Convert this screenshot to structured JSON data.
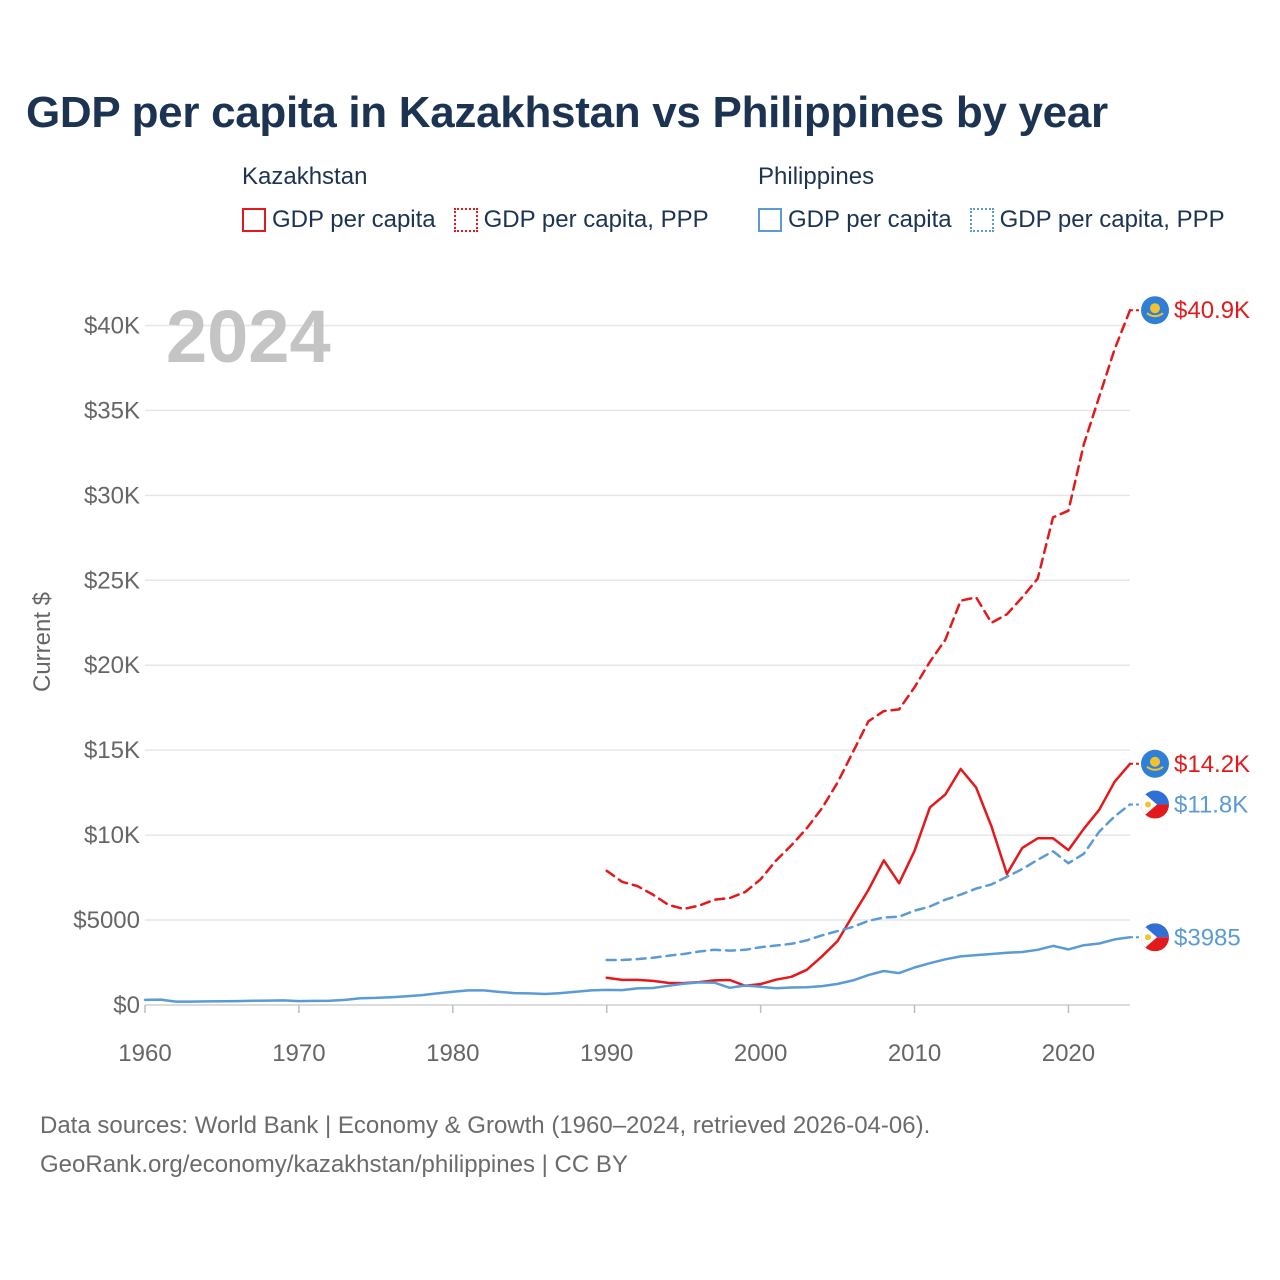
{
  "title": "GDP per capita in Kazakhstan vs Philippines by year",
  "legend": {
    "groups": [
      {
        "country": "Kazakhstan",
        "items": [
          {
            "label": "GDP per capita",
            "style": "solid",
            "color": "#e31a1c"
          },
          {
            "label": "GDP per capita, PPP",
            "style": "dotted",
            "color": "#e31a1c"
          }
        ]
      },
      {
        "country": "Philippines",
        "items": [
          {
            "label": "GDP per capita",
            "style": "solid",
            "color": "#5b9bd5"
          },
          {
            "label": "GDP per capita, PPP",
            "style": "dotted",
            "color": "#5b9bd5"
          }
        ]
      }
    ]
  },
  "footer": {
    "line1": "Data sources: World Bank | Economy & Growth (1960–2024, retrieved 2026-04-06).",
    "line2": "GeoRank.org/economy/kazakhstan/philippines | CC BY"
  },
  "chart_data": {
    "type": "line",
    "title": "GDP per capita in Kazakhstan vs Philippines by year",
    "year_label": "2024",
    "ylabel": "Current $",
    "xlabel": "",
    "xlim": [
      1960,
      2024
    ],
    "ylim": [
      0,
      41500
    ],
    "x_ticks": [
      1960,
      1970,
      1980,
      1990,
      2000,
      2010,
      2020
    ],
    "y_ticks": [
      0,
      5000,
      10000,
      15000,
      20000,
      25000,
      30000,
      35000,
      40000
    ],
    "y_tick_labels": [
      "$0",
      "$5000",
      "$10K",
      "$15K",
      "$20K",
      "$25K",
      "$30K",
      "$35K",
      "$40K"
    ],
    "grid": true,
    "series": [
      {
        "name": "Kazakhstan GDP per capita, PPP",
        "color": "#e31a1c",
        "dash": "dashed",
        "end_label": "$40.9K",
        "points": [
          [
            1990,
            7900
          ],
          [
            1991,
            7250
          ],
          [
            1992,
            7000
          ],
          [
            1993,
            6500
          ],
          [
            1994,
            5900
          ],
          [
            1995,
            5650
          ],
          [
            1996,
            5850
          ],
          [
            1997,
            6200
          ],
          [
            1998,
            6300
          ],
          [
            1999,
            6650
          ],
          [
            2000,
            7400
          ],
          [
            2001,
            8500
          ],
          [
            2002,
            9400
          ],
          [
            2003,
            10400
          ],
          [
            2004,
            11600
          ],
          [
            2005,
            13100
          ],
          [
            2006,
            14900
          ],
          [
            2007,
            16700
          ],
          [
            2008,
            17300
          ],
          [
            2009,
            17400
          ],
          [
            2010,
            18700
          ],
          [
            2011,
            20200
          ],
          [
            2012,
            21500
          ],
          [
            2013,
            23800
          ],
          [
            2014,
            24000
          ],
          [
            2015,
            22500
          ],
          [
            2016,
            23000
          ],
          [
            2017,
            24000
          ],
          [
            2018,
            25100
          ],
          [
            2019,
            28700
          ],
          [
            2020,
            29100
          ],
          [
            2021,
            33000
          ],
          [
            2022,
            35800
          ],
          [
            2023,
            38600
          ],
          [
            2024,
            40900
          ]
        ]
      },
      {
        "name": "Kazakhstan GDP per capita",
        "color": "#e31a1c",
        "dash": "solid",
        "end_label": "$14.2K",
        "points": [
          [
            1990,
            1600
          ],
          [
            1991,
            1480
          ],
          [
            1992,
            1480
          ],
          [
            1993,
            1420
          ],
          [
            1994,
            1300
          ],
          [
            1995,
            1290
          ],
          [
            1996,
            1350
          ],
          [
            1997,
            1450
          ],
          [
            1998,
            1470
          ],
          [
            1999,
            1130
          ],
          [
            2000,
            1230
          ],
          [
            2001,
            1490
          ],
          [
            2002,
            1660
          ],
          [
            2003,
            2070
          ],
          [
            2004,
            2870
          ],
          [
            2005,
            3770
          ],
          [
            2006,
            5290
          ],
          [
            2007,
            6770
          ],
          [
            2008,
            8510
          ],
          [
            2009,
            7170
          ],
          [
            2010,
            9070
          ],
          [
            2011,
            11630
          ],
          [
            2012,
            12390
          ],
          [
            2013,
            13890
          ],
          [
            2014,
            12810
          ],
          [
            2015,
            10510
          ],
          [
            2016,
            7710
          ],
          [
            2017,
            9250
          ],
          [
            2018,
            9810
          ],
          [
            2019,
            9810
          ],
          [
            2020,
            9120
          ],
          [
            2021,
            10370
          ],
          [
            2022,
            11490
          ],
          [
            2023,
            13140
          ],
          [
            2024,
            14200
          ]
        ]
      },
      {
        "name": "Philippines GDP per capita, PPP",
        "color": "#5b9bd5",
        "dash": "dashed",
        "end_label": "$11.8K",
        "points": [
          [
            1990,
            2650
          ],
          [
            1991,
            2650
          ],
          [
            1992,
            2700
          ],
          [
            1993,
            2780
          ],
          [
            1994,
            2900
          ],
          [
            1995,
            3000
          ],
          [
            1996,
            3150
          ],
          [
            1997,
            3250
          ],
          [
            1998,
            3200
          ],
          [
            1999,
            3250
          ],
          [
            2000,
            3400
          ],
          [
            2001,
            3500
          ],
          [
            2002,
            3600
          ],
          [
            2003,
            3800
          ],
          [
            2004,
            4100
          ],
          [
            2005,
            4350
          ],
          [
            2006,
            4600
          ],
          [
            2007,
            4950
          ],
          [
            2008,
            5150
          ],
          [
            2009,
            5200
          ],
          [
            2010,
            5550
          ],
          [
            2011,
            5800
          ],
          [
            2012,
            6200
          ],
          [
            2013,
            6500
          ],
          [
            2014,
            6850
          ],
          [
            2015,
            7100
          ],
          [
            2016,
            7550
          ],
          [
            2017,
            8000
          ],
          [
            2018,
            8550
          ],
          [
            2019,
            9050
          ],
          [
            2020,
            8350
          ],
          [
            2021,
            8900
          ],
          [
            2022,
            10200
          ],
          [
            2023,
            11100
          ],
          [
            2024,
            11800
          ]
        ]
      },
      {
        "name": "Philippines GDP per capita",
        "color": "#5b9bd5",
        "dash": "solid",
        "end_label": "$3985",
        "points": [
          [
            1960,
            300
          ],
          [
            1961,
            320
          ],
          [
            1962,
            200
          ],
          [
            1963,
            200
          ],
          [
            1964,
            210
          ],
          [
            1965,
            220
          ],
          [
            1966,
            230
          ],
          [
            1967,
            250
          ],
          [
            1968,
            260
          ],
          [
            1969,
            270
          ],
          [
            1970,
            230
          ],
          [
            1971,
            240
          ],
          [
            1972,
            250
          ],
          [
            1973,
            300
          ],
          [
            1974,
            400
          ],
          [
            1975,
            420
          ],
          [
            1976,
            460
          ],
          [
            1977,
            520
          ],
          [
            1978,
            580
          ],
          [
            1979,
            680
          ],
          [
            1980,
            780
          ],
          [
            1981,
            860
          ],
          [
            1982,
            860
          ],
          [
            1983,
            770
          ],
          [
            1984,
            700
          ],
          [
            1985,
            680
          ],
          [
            1986,
            650
          ],
          [
            1987,
            700
          ],
          [
            1988,
            780
          ],
          [
            1989,
            860
          ],
          [
            1990,
            890
          ],
          [
            1991,
            880
          ],
          [
            1992,
            980
          ],
          [
            1993,
            1000
          ],
          [
            1994,
            1130
          ],
          [
            1995,
            1250
          ],
          [
            1996,
            1330
          ],
          [
            1997,
            1310
          ],
          [
            1998,
            1010
          ],
          [
            1999,
            1150
          ],
          [
            2000,
            1070
          ],
          [
            2001,
            990
          ],
          [
            2002,
            1030
          ],
          [
            2003,
            1040
          ],
          [
            2004,
            1110
          ],
          [
            2005,
            1240
          ],
          [
            2006,
            1450
          ],
          [
            2007,
            1760
          ],
          [
            2008,
            2000
          ],
          [
            2009,
            1880
          ],
          [
            2010,
            2210
          ],
          [
            2011,
            2460
          ],
          [
            2012,
            2690
          ],
          [
            2013,
            2860
          ],
          [
            2014,
            2940
          ],
          [
            2015,
            3000
          ],
          [
            2016,
            3070
          ],
          [
            2017,
            3120
          ],
          [
            2018,
            3250
          ],
          [
            2019,
            3480
          ],
          [
            2020,
            3270
          ],
          [
            2021,
            3520
          ],
          [
            2022,
            3620
          ],
          [
            2023,
            3860
          ],
          [
            2024,
            3985
          ]
        ]
      }
    ]
  }
}
